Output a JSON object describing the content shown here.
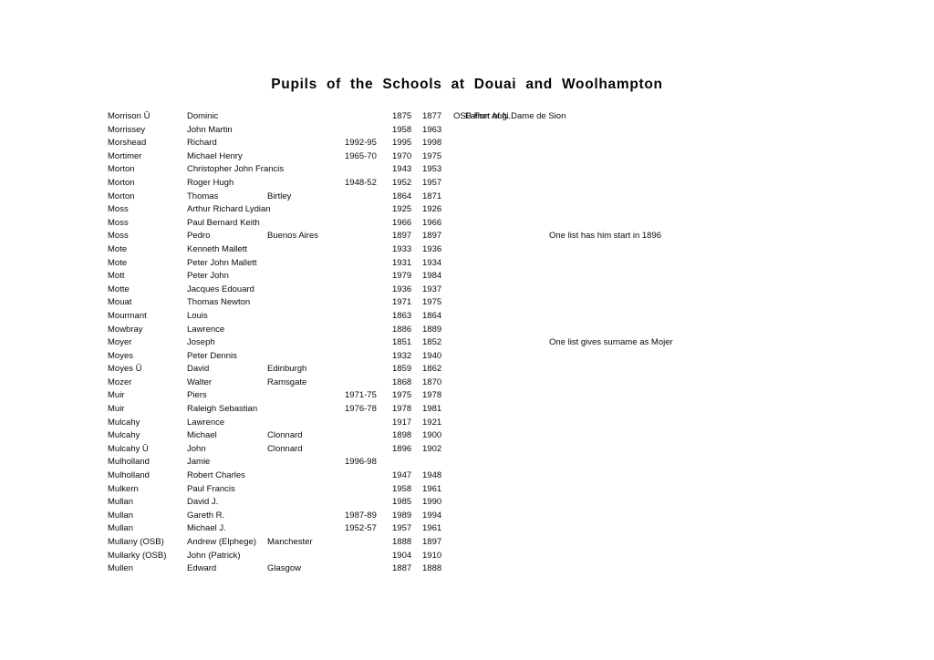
{
  "document": {
    "title": "Pupils of the Schools at Douai and Woolhampton"
  },
  "table": {
    "rows": [
      {
        "surname": "Morrison Ū",
        "forename": "Dominic",
        "place": "",
        "attended": "",
        "start": "1875",
        "end": "1877",
        "note_primary": "OSB Fort Aug.",
        "note_secondary": "Father of N.Dame de Sion",
        "note": ""
      },
      {
        "surname": "Morrissey",
        "forename": "John Martin",
        "place": "",
        "attended": "",
        "start": "1958",
        "end": "1963",
        "note": ""
      },
      {
        "surname": "Morshead",
        "forename": "Richard",
        "place": "",
        "attended": "1992-95",
        "start": "1995",
        "end": "1998",
        "note": ""
      },
      {
        "surname": "Mortimer",
        "forename": "Michael Henry",
        "place": "",
        "attended": "1965-70",
        "start": "1970",
        "end": "1975",
        "note": ""
      },
      {
        "surname": "Morton",
        "forename": "Christopher John Francis",
        "place": "",
        "attended": "",
        "start": "1943",
        "end": "1953",
        "note": ""
      },
      {
        "surname": "Morton",
        "forename": "Roger Hugh",
        "place": "",
        "attended": "1948-52",
        "start": "1952",
        "end": "1957",
        "note": ""
      },
      {
        "surname": "Morton",
        "forename": "Thomas",
        "place": "Birtley",
        "attended": "",
        "start": "1864",
        "end": "1871",
        "note": ""
      },
      {
        "surname": "Moss",
        "forename": "Arthur Richard Lydian",
        "place": "",
        "attended": "",
        "start": "1925",
        "end": "1926",
        "note": ""
      },
      {
        "surname": "Moss",
        "forename": "Paul Bernard Keith",
        "place": "",
        "attended": "",
        "start": "1966",
        "end": "1966",
        "note": ""
      },
      {
        "surname": "Moss",
        "forename": "Pedro",
        "place": "Buenos Aires",
        "attended": "",
        "start": "1897",
        "end": "1897",
        "note": "One list has him start in 1896"
      },
      {
        "surname": "Mote",
        "forename": "Kenneth Mallett",
        "place": "",
        "attended": "",
        "start": "1933",
        "end": "1936",
        "note": ""
      },
      {
        "surname": "Mote",
        "forename": "Peter John Mallett",
        "place": "",
        "attended": "",
        "start": "1931",
        "end": "1934",
        "note": ""
      },
      {
        "surname": "Mott",
        "forename": "Peter John",
        "place": "",
        "attended": "",
        "start": "1979",
        "end": "1984",
        "note": ""
      },
      {
        "surname": "Motte",
        "forename": "Jacques Edouard",
        "place": "",
        "attended": "",
        "start": "1936",
        "end": "1937",
        "note": ""
      },
      {
        "surname": "Mouat",
        "forename": "Thomas Newton",
        "place": "",
        "attended": "",
        "start": "1971",
        "end": "1975",
        "note": ""
      },
      {
        "surname": "Mourmant",
        "forename": "Louis",
        "place": "",
        "attended": "",
        "start": "1863",
        "end": "1864",
        "note": ""
      },
      {
        "surname": "Mowbray",
        "forename": "Lawrence",
        "place": "",
        "attended": "",
        "start": "1886",
        "end": "1889",
        "note": ""
      },
      {
        "surname": "Moyer",
        "forename": "Joseph",
        "place": "",
        "attended": "",
        "start": "1851",
        "end": "1852",
        "note": "One list gives surname as Mojer"
      },
      {
        "surname": "Moyes",
        "forename": "Peter Dennis",
        "place": "",
        "attended": "",
        "start": "1932",
        "end": "1940",
        "note": ""
      },
      {
        "surname": "Moyes Ū",
        "forename": "David",
        "place": "Edinburgh",
        "attended": "",
        "start": "1859",
        "end": "1862",
        "note": ""
      },
      {
        "surname": "Mozer",
        "forename": "Walter",
        "place": "Ramsgate",
        "attended": "",
        "start": "1868",
        "end": "1870",
        "note": ""
      },
      {
        "surname": "Muir",
        "forename": "Piers",
        "place": "",
        "attended": "1971-75",
        "start": "1975",
        "end": "1978",
        "note": ""
      },
      {
        "surname": "Muir",
        "forename": "Raleigh Sebastian",
        "place": "",
        "attended": "1976-78",
        "start": "1978",
        "end": "1981",
        "note": ""
      },
      {
        "surname": "Mulcahy",
        "forename": "Lawrence",
        "place": "",
        "attended": "",
        "start": "1917",
        "end": "1921",
        "note": ""
      },
      {
        "surname": "Mulcahy",
        "forename": "Michael",
        "place": "Clonnard",
        "attended": "",
        "start": "1898",
        "end": "1900",
        "note": ""
      },
      {
        "surname": "Mulcahy Ū",
        "forename": "John",
        "place": "Clonnard",
        "attended": "",
        "start": "1896",
        "end": "1902",
        "note": ""
      },
      {
        "surname": "Mulholland",
        "forename": "Jamie",
        "place": "",
        "attended": "1996-98",
        "start": "",
        "end": "",
        "note": ""
      },
      {
        "surname": "Mulholland",
        "forename": "Robert Charles",
        "place": "",
        "attended": "",
        "start": "1947",
        "end": "1948",
        "note": ""
      },
      {
        "surname": "Mulkern",
        "forename": "Paul Francis",
        "place": "",
        "attended": "",
        "start": "1958",
        "end": "1961",
        "note": ""
      },
      {
        "surname": "Mullan",
        "forename": "David J.",
        "place": "",
        "attended": "",
        "start": "1985",
        "end": "1990",
        "note": ""
      },
      {
        "surname": "Mullan",
        "forename": "Gareth R.",
        "place": "",
        "attended": "1987-89",
        "start": "1989",
        "end": "1994",
        "note": ""
      },
      {
        "surname": "Mullan",
        "forename": "Michael J.",
        "place": "",
        "attended": "1952-57",
        "start": "1957",
        "end": "1961",
        "note": ""
      },
      {
        "surname": "Mullany (OSB)",
        "forename": "Andrew (Elphege)",
        "place": "Manchester",
        "attended": "",
        "start": "1888",
        "end": "1897",
        "note": ""
      },
      {
        "surname": "Mullarky (OSB)",
        "forename": "John (Patrick)",
        "place": "",
        "attended": "",
        "start": "1904",
        "end": "1910",
        "note": ""
      },
      {
        "surname": "Mullen",
        "forename": "Edward",
        "place": "Glasgow",
        "attended": "",
        "start": "1887",
        "end": "1888",
        "note": ""
      }
    ]
  }
}
